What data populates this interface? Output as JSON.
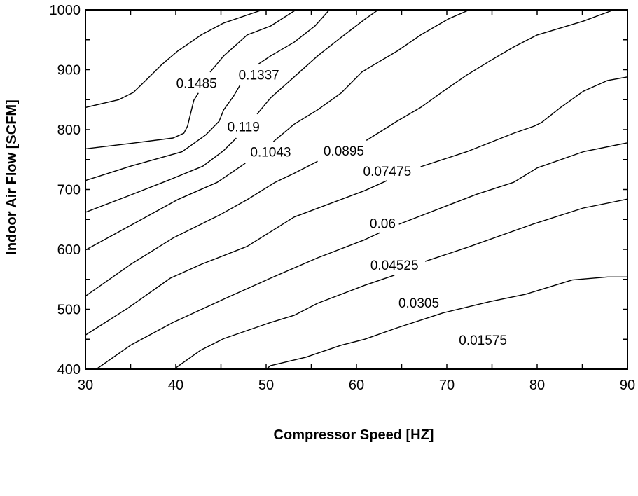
{
  "chart_data": {
    "type": "contour",
    "title": "",
    "xlabel": "Compressor Speed [HZ]",
    "ylabel": "Indoor Air Flow [SCFM]",
    "xlim": [
      30,
      90
    ],
    "ylim": [
      400,
      1000
    ],
    "xticks": [
      30,
      40,
      50,
      60,
      70,
      80,
      90
    ],
    "xminor_step": 5,
    "yticks": [
      400,
      500,
      600,
      700,
      800,
      900,
      1000
    ],
    "yminor_step": 50,
    "grid": false,
    "line_color": "#000000",
    "contours": [
      {
        "segments": [
          [
            [
              30,
              837
            ],
            [
              33.7,
              850
            ],
            [
              35.3,
              862
            ],
            [
              36.8,
              884
            ],
            [
              38.4,
              908
            ],
            [
              40.2,
              931
            ],
            [
              42.8,
              958
            ],
            [
              45.3,
              978
            ],
            [
              49.6,
              1000
            ]
          ]
        ]
      },
      {
        "level": "0.1485",
        "segments": [
          [
            [
              30,
              768
            ],
            [
              35.0,
              777
            ],
            [
              39.7,
              786
            ],
            [
              40.9,
              794
            ],
            [
              41.3,
              806
            ],
            [
              42.0,
              849
            ],
            [
              42.5,
              861
            ]
          ],
          [
            [
              43.8,
              896
            ],
            [
              45.3,
              923
            ],
            [
              47.9,
              958
            ],
            [
              50.5,
              973
            ],
            [
              53.3,
              1000
            ]
          ]
        ]
      },
      {
        "level": "0.1337",
        "segments": [
          [
            [
              30,
              715
            ],
            [
              35.0,
              739
            ],
            [
              40.7,
              763
            ],
            [
              43.3,
              791
            ],
            [
              44.8,
              814
            ],
            [
              45.3,
              833
            ],
            [
              46.4,
              856
            ],
            [
              47.1,
              874
            ]
          ],
          [
            [
              49.1,
              909
            ],
            [
              50.5,
              923
            ],
            [
              53.1,
              946
            ],
            [
              55.4,
              973
            ],
            [
              57.0,
              1000
            ]
          ]
        ]
      },
      {
        "level": "0.119",
        "segments": [
          [
            [
              30,
              662
            ],
            [
              34.7,
              689
            ],
            [
              39.1,
              715
            ],
            [
              43.0,
              739
            ],
            [
              45.3,
              765
            ],
            [
              46.7,
              786
            ]
          ],
          [
            [
              49.0,
              826
            ],
            [
              50.5,
              853
            ],
            [
              53.1,
              888
            ],
            [
              55.7,
              923
            ],
            [
              58.3,
              954
            ],
            [
              60.9,
              984
            ],
            [
              62.4,
              1000
            ]
          ]
        ]
      },
      {
        "level": "0.1043",
        "segments": [
          [
            [
              30,
              599
            ],
            [
              35.0,
              640
            ],
            [
              40.2,
              683
            ],
            [
              44.6,
              712
            ],
            [
              47.7,
              744
            ]
          ],
          [
            [
              50.8,
              780
            ],
            [
              53.1,
              809
            ],
            [
              55.7,
              833
            ],
            [
              58.3,
              861
            ],
            [
              60.6,
              896
            ],
            [
              61.9,
              908
            ],
            [
              64.5,
              931
            ],
            [
              67.1,
              958
            ],
            [
              70.2,
              985
            ],
            [
              72.5,
              1000
            ]
          ]
        ]
      },
      {
        "level": "0.0895",
        "segments": [
          [
            [
              30,
              522
            ],
            [
              35.0,
              575
            ],
            [
              39.7,
              619
            ],
            [
              44.8,
              657
            ],
            [
              47.9,
              683
            ],
            [
              51.0,
              712
            ],
            [
              53.1,
              727
            ],
            [
              55.7,
              747
            ]
          ],
          [
            [
              61.1,
              782
            ],
            [
              64.5,
              814
            ],
            [
              67.1,
              837
            ],
            [
              69.6,
              864
            ],
            [
              72.2,
              891
            ],
            [
              74.8,
              915
            ],
            [
              77.4,
              938
            ],
            [
              80.0,
              958
            ],
            [
              85.1,
              981
            ],
            [
              88.5,
              1000
            ]
          ]
        ]
      },
      {
        "level": "0.07475",
        "segments": [
          [
            [
              30,
              457
            ],
            [
              34.7,
              502
            ],
            [
              39.4,
              552
            ],
            [
              42.8,
              575
            ],
            [
              47.9,
              605
            ],
            [
              53.1,
              654
            ],
            [
              60.9,
              698
            ],
            [
              63.4,
              715
            ]
          ],
          [
            [
              67.1,
              738
            ],
            [
              72.2,
              763
            ],
            [
              77.4,
              794
            ],
            [
              79.7,
              806
            ],
            [
              80.5,
              812
            ],
            [
              82.6,
              837
            ],
            [
              85.1,
              864
            ],
            [
              87.8,
              882
            ],
            [
              90,
              888
            ]
          ]
        ]
      },
      {
        "level": "0.06",
        "segments": [
          [
            [
              31.2,
              400
            ],
            [
              35.0,
              440
            ],
            [
              39.7,
              478
            ],
            [
              45.3,
              517
            ],
            [
              50.5,
              552
            ],
            [
              55.7,
              586
            ],
            [
              60.9,
              616
            ],
            [
              62.6,
              628
            ]
          ],
          [
            [
              64.7,
              642
            ],
            [
              70.2,
              674
            ],
            [
              73.3,
              692
            ],
            [
              77.4,
              712
            ],
            [
              80.0,
              736
            ],
            [
              85.1,
              763
            ],
            [
              90,
              778
            ]
          ]
        ]
      },
      {
        "level": "0.04525",
        "segments": [
          [
            [
              39.8,
              400
            ],
            [
              42.8,
              432
            ],
            [
              45.3,
              451
            ],
            [
              50.5,
              478
            ],
            [
              53.1,
              490
            ],
            [
              55.7,
              510
            ],
            [
              60.9,
              540
            ],
            [
              64.2,
              557
            ]
          ],
          [
            [
              67.6,
              580
            ],
            [
              72.2,
              603
            ],
            [
              79.5,
              642
            ],
            [
              85.1,
              669
            ],
            [
              90,
              684
            ]
          ]
        ]
      },
      {
        "segments": [
          [
            [
              50.0,
              400
            ],
            [
              50.5,
              406
            ],
            [
              54.4,
              420
            ],
            [
              58.3,
              440
            ],
            [
              60.9,
              450
            ],
            [
              64.5,
              469
            ],
            [
              69.6,
              494
            ],
            [
              74.8,
              513
            ],
            [
              78.7,
              525
            ],
            [
              83.9,
              549
            ],
            [
              87.8,
              554
            ],
            [
              90,
              554
            ]
          ]
        ]
      }
    ],
    "annotations": [
      {
        "text": "0.1485",
        "x": 42.3,
        "y": 878
      },
      {
        "text": "0.1337",
        "x": 49.2,
        "y": 892
      },
      {
        "text": "0.119",
        "x": 47.5,
        "y": 805
      },
      {
        "text": "0.1043",
        "x": 50.5,
        "y": 763
      },
      {
        "text": "0.0895",
        "x": 58.6,
        "y": 765
      },
      {
        "text": "0.07475",
        "x": 63.4,
        "y": 731
      },
      {
        "text": "0.06",
        "x": 62.9,
        "y": 644
      },
      {
        "text": "0.04525",
        "x": 64.2,
        "y": 574
      },
      {
        "text": "0.0305",
        "x": 66.9,
        "y": 511
      },
      {
        "text": "0.01575",
        "x": 74.0,
        "y": 449
      }
    ]
  }
}
